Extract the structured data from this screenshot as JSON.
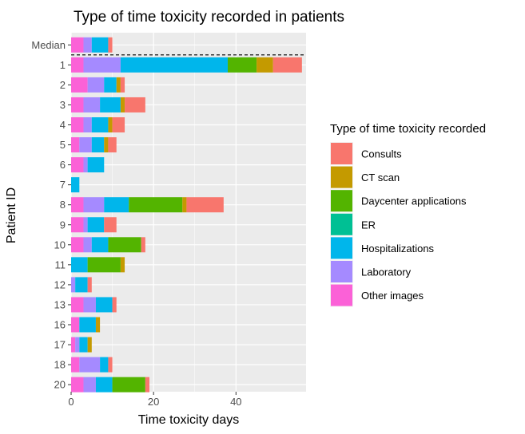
{
  "chart_data": {
    "type": "bar",
    "orientation": "horizontal",
    "stacked": true,
    "title": "Type of time toxicity recorded in patients",
    "xlabel": "Time toxicity days",
    "ylabel": "Patient ID",
    "xlim": [
      0,
      57
    ],
    "xticks": [
      0,
      20,
      40
    ],
    "grid": true,
    "legend_title": "Type of time toxicity recorded",
    "legend_position": "right",
    "categories": [
      "Median",
      "1",
      "2",
      "3",
      "4",
      "5",
      "6",
      "7",
      "8",
      "9",
      "10",
      "11",
      "12",
      "13",
      "16",
      "17",
      "18",
      "20"
    ],
    "median_separator": "dashed",
    "stack_order": [
      "Other images",
      "Laboratory",
      "Hospitalizations",
      "ER",
      "Daycenter applications",
      "CT scan",
      "Consults"
    ],
    "series": [
      {
        "name": "Consults",
        "color": "#F8766D",
        "values": [
          1,
          7,
          1,
          5,
          3,
          2,
          0,
          0,
          9,
          3,
          1,
          0,
          1,
          1,
          0,
          0,
          1,
          1
        ]
      },
      {
        "name": "CT scan",
        "color": "#C49A00",
        "values": [
          0,
          4,
          1,
          1,
          1,
          1,
          0,
          0,
          1,
          0,
          0,
          1,
          0,
          0,
          1,
          1,
          0,
          0
        ]
      },
      {
        "name": "Daycenter applications",
        "color": "#53B400",
        "values": [
          0,
          7,
          0,
          0,
          0,
          0,
          0,
          0,
          13,
          0,
          8,
          8,
          0,
          0,
          0,
          0,
          0,
          8
        ]
      },
      {
        "name": "ER",
        "color": "#00C094",
        "values": [
          0,
          0,
          0,
          0,
          0,
          0,
          0,
          0,
          0,
          0,
          0,
          0,
          0,
          0,
          0,
          0,
          0,
          0
        ]
      },
      {
        "name": "Hospitalizations",
        "color": "#00B6EB",
        "values": [
          4,
          26,
          3,
          5,
          4,
          3,
          4,
          2,
          6,
          4,
          4,
          4,
          3,
          4,
          4,
          2,
          2,
          4
        ]
      },
      {
        "name": "Laboratory",
        "color": "#A58AFF",
        "values": [
          2,
          9,
          4,
          4,
          2,
          3,
          1,
          0,
          5,
          1,
          2,
          0,
          1,
          3,
          0,
          1,
          5,
          3
        ]
      },
      {
        "name": "Other images",
        "color": "#FB61D7",
        "values": [
          3,
          3,
          4,
          3,
          3,
          2,
          3,
          0,
          3,
          3,
          3,
          0,
          0,
          3,
          2,
          1,
          2,
          3
        ]
      }
    ]
  },
  "colors": {
    "panel_background": "#EBEBEB",
    "grid_major": "#FFFFFF",
    "tick_text": "#4D4D4D",
    "tick_mark": "#333333"
  }
}
